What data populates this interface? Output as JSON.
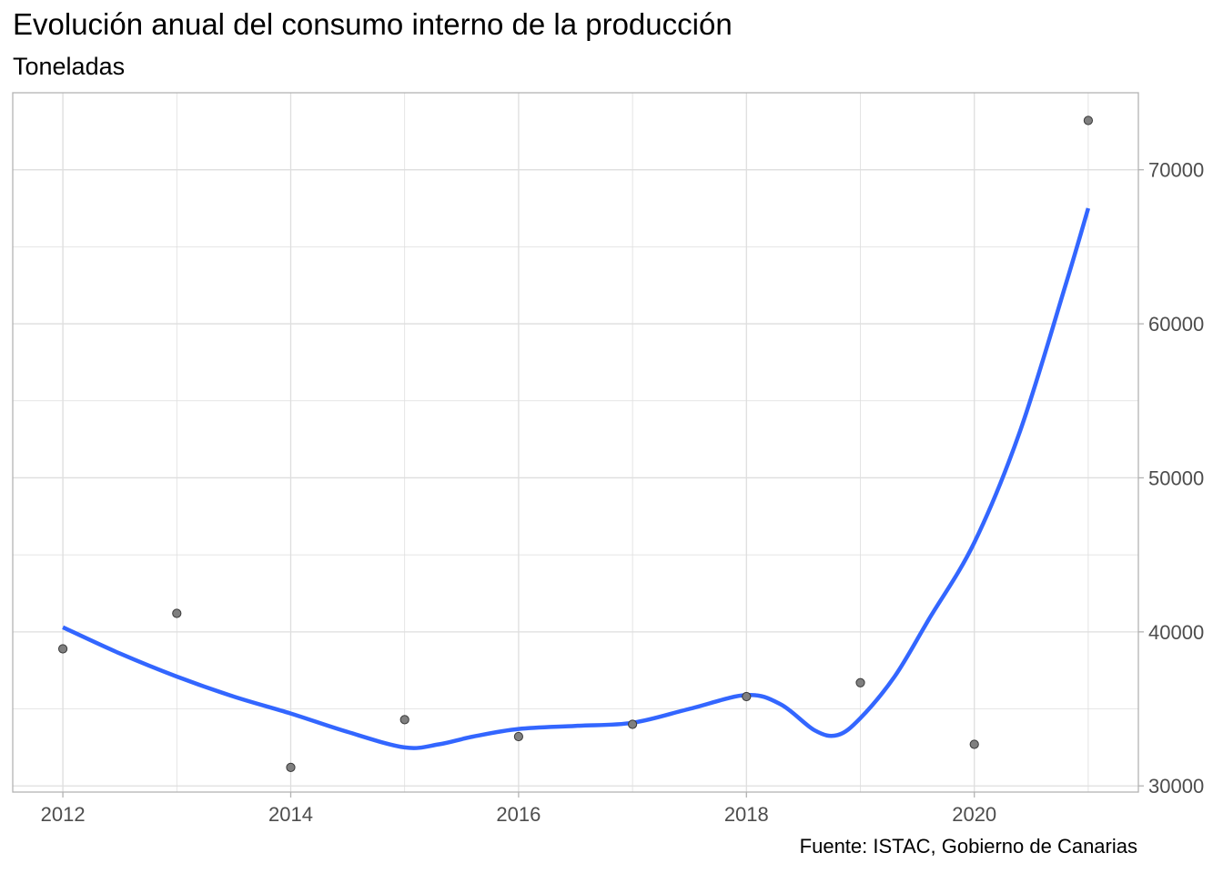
{
  "chart_data": {
    "type": "scatter",
    "title": "Evolución anual del consumo interno de la producción",
    "subtitle": "Toneladas",
    "caption": "Fuente: ISTAC, Gobierno de Canarias",
    "xlabel": "",
    "ylabel": "",
    "x_ticks": [
      2012,
      2014,
      2016,
      2018,
      2020
    ],
    "y_ticks": [
      30000,
      40000,
      50000,
      60000,
      70000
    ],
    "xlim": [
      2011.56,
      2021.44
    ],
    "ylim": [
      29600,
      75000
    ],
    "y_axis_position": "right",
    "grid": true,
    "legend": "none",
    "points": {
      "x": [
        2012,
        2013,
        2014,
        2015,
        2016,
        2017,
        2018,
        2019,
        2020,
        2021
      ],
      "y": [
        38900,
        41200,
        31200,
        34300,
        33200,
        34000,
        35800,
        36700,
        32700,
        73200
      ],
      "color": "#7f7f7f"
    },
    "smooth": {
      "color": "#3366ff",
      "x": [
        2012,
        2012.5,
        2013,
        2013.5,
        2014,
        2014.5,
        2015,
        2015.3,
        2015.6,
        2016,
        2016.5,
        2017,
        2017.5,
        2018,
        2018.3,
        2018.6,
        2018.8,
        2019,
        2019.3,
        2019.6,
        2020,
        2020.4,
        2020.8,
        2021
      ],
      "y": [
        40300,
        38600,
        37100,
        35800,
        34700,
        33500,
        32500,
        32700,
        33200,
        33700,
        33900,
        34100,
        35000,
        35900,
        35300,
        33600,
        33300,
        34400,
        37100,
        40800,
        45800,
        53000,
        62500,
        67500
      ]
    }
  }
}
